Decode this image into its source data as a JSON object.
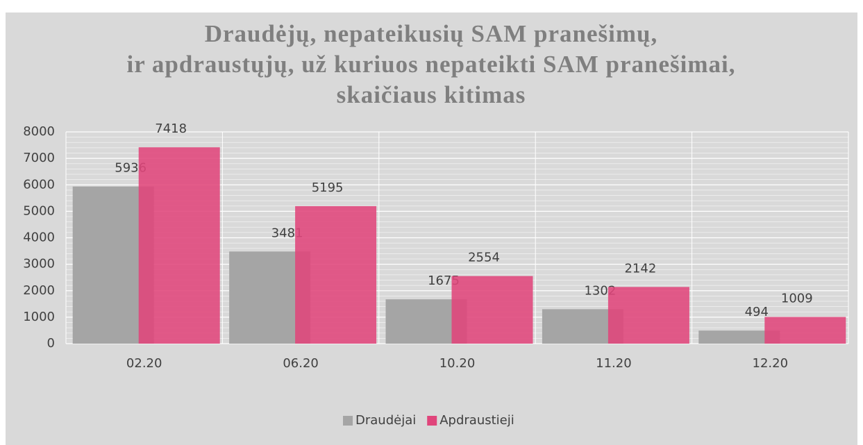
{
  "chart_data": {
    "type": "bar",
    "title": [
      "Draudėjų, nepateikusių SAM pranešimų,",
      "ir apdraustųjų, už kuriuos nepateikti SAM pranešimai,",
      "skaičiaus kitimas"
    ],
    "categories": [
      "02.20",
      "06.20",
      "10.20",
      "11.20",
      "12.20"
    ],
    "series": [
      {
        "name": "Draudėjai",
        "color": "#a5a5a5",
        "values": [
          5936,
          3481,
          1675,
          1302,
          494
        ]
      },
      {
        "name": "Apdraustieji",
        "color": "#e0457b",
        "values": [
          7418,
          5195,
          2554,
          2142,
          1009
        ]
      }
    ],
    "ylim": [
      0,
      8000
    ],
    "yticks": [
      0,
      1000,
      2000,
      3000,
      4000,
      5000,
      6000,
      7000,
      8000
    ],
    "grid": true,
    "legend": "bottom"
  }
}
